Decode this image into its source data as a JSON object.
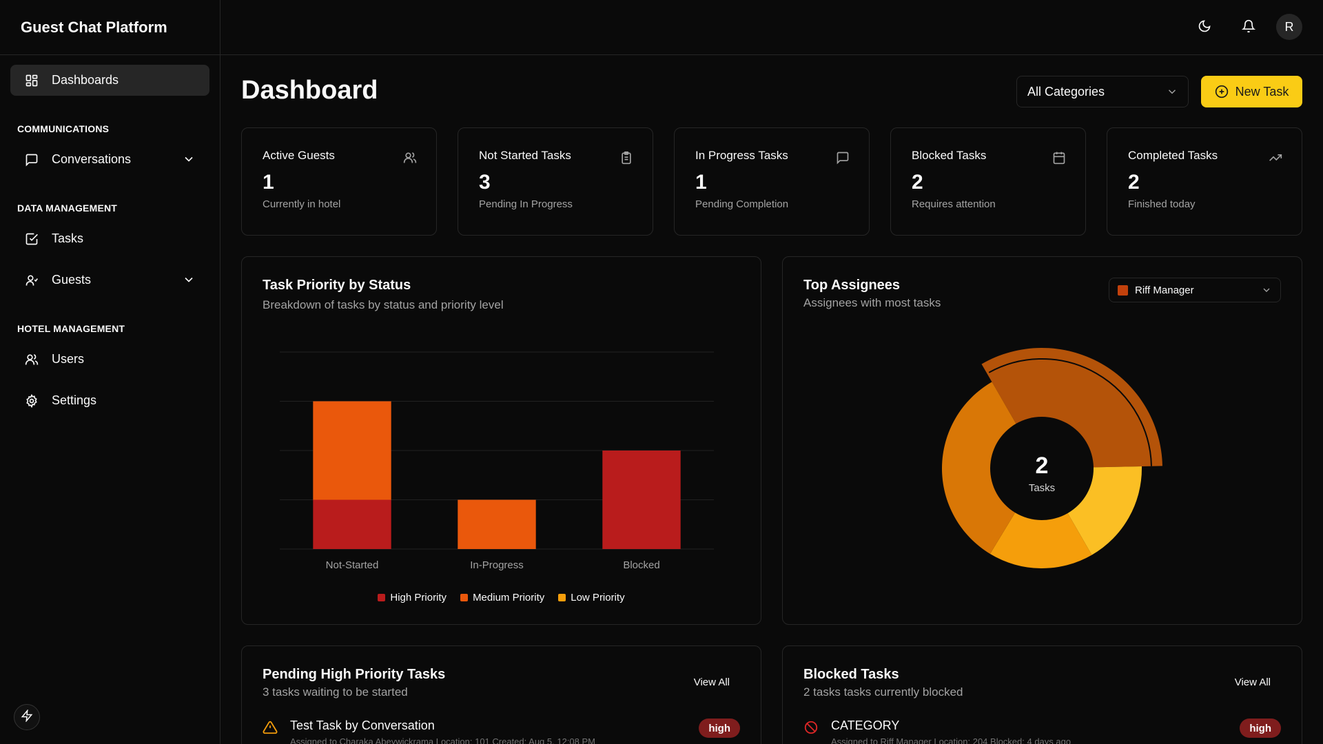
{
  "app": {
    "title": "Guest Chat Platform"
  },
  "sidebar": {
    "dashboards": "Dashboards",
    "sections": {
      "communications": "COMMUNICATIONS",
      "data_management": "DATA MANAGEMENT",
      "hotel_management": "HOTEL MANAGEMENT"
    },
    "items": {
      "conversations": "Conversations",
      "tasks": "Tasks",
      "guests": "Guests",
      "users": "Users",
      "settings": "Settings"
    }
  },
  "topbar": {
    "avatar_initial": "R",
    "icons": [
      "moon-icon",
      "bell-icon"
    ]
  },
  "page": {
    "title": "Dashboard",
    "category_select": "All Categories",
    "new_task_label": "New Task"
  },
  "stats": [
    {
      "label": "Active Guests",
      "value": "1",
      "sub": "Currently in hotel",
      "icon": "users-icon"
    },
    {
      "label": "Not Started Tasks",
      "value": "3",
      "sub": "Pending In Progress",
      "icon": "clipboard-icon"
    },
    {
      "label": "In Progress Tasks",
      "value": "1",
      "sub": "Pending Completion",
      "icon": "message-icon"
    },
    {
      "label": "Blocked Tasks",
      "value": "2",
      "sub": "Requires attention",
      "icon": "calendar-icon"
    },
    {
      "label": "Completed Tasks",
      "value": "2",
      "sub": "Finished today",
      "icon": "trending-up-icon"
    }
  ],
  "priority_card": {
    "title": "Task Priority by Status",
    "subtitle": "Breakdown of tasks by status and priority level"
  },
  "assignee_card": {
    "title": "Top Assignees",
    "subtitle": "Assignees with most tasks",
    "select": "Riff Manager",
    "center_value": "2",
    "center_label": "Tasks"
  },
  "chart_data": [
    {
      "type": "bar",
      "stacked": true,
      "categories": [
        "Not-Started",
        "In-Progress",
        "Blocked"
      ],
      "series": [
        {
          "name": "High Priority",
          "values": [
            1,
            0,
            2
          ],
          "color": "#b91c1c"
        },
        {
          "name": "Medium Priority",
          "values": [
            2,
            1,
            0
          ],
          "color": "#ea580c"
        },
        {
          "name": "Low Priority",
          "values": [
            0,
            0,
            0
          ],
          "color": "#f59e0b"
        }
      ],
      "ylim": [
        0,
        4
      ],
      "grid": true,
      "legend": "bottom"
    },
    {
      "type": "pie",
      "donut": true,
      "slices": [
        {
          "value": 0.33,
          "color": "#b45309",
          "highlighted": true
        },
        {
          "value": 0.17,
          "color": "#fbbf24"
        },
        {
          "value": 0.17,
          "color": "#f59e0b"
        },
        {
          "value": 0.33,
          "color": "#d97706"
        }
      ]
    }
  ],
  "pending_card": {
    "title": "Pending High Priority Tasks",
    "subtitle": "3 tasks waiting to be started",
    "view_all": "View All",
    "task": {
      "name": "Test Task by Conversation",
      "meta": "Assigned to Charaka Abeywickrama     Location: 101     Created: Aug 5, 12:08 PM",
      "badge": "high"
    }
  },
  "blocked_card": {
    "title": "Blocked Tasks",
    "subtitle": "2 tasks tasks currently blocked",
    "view_all": "View All",
    "task": {
      "name": "CATEGORY",
      "meta": "Assigned to Riff Manager     Location: 204     Blocked: 4 days ago",
      "badge": "high"
    }
  }
}
